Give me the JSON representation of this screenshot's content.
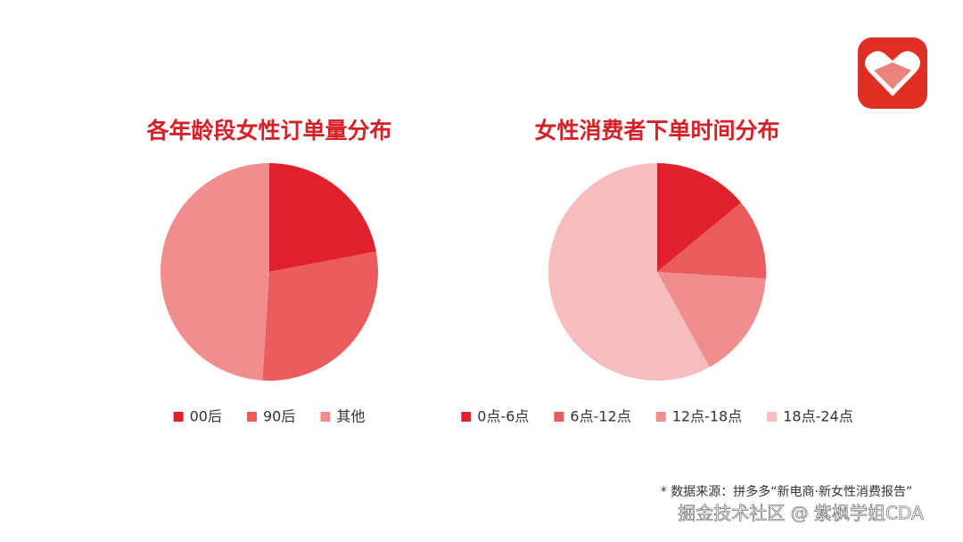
{
  "chart_data": [
    {
      "type": "pie",
      "title": "各年龄段女性订单量分布",
      "categories": [
        "00后",
        "90后",
        "其他"
      ],
      "values": [
        22,
        29,
        49
      ],
      "colors": [
        "#e0202a",
        "#ea5b5e",
        "#f08e8f"
      ]
    },
    {
      "type": "pie",
      "title": "女性消费者下单时间分布",
      "categories": [
        "0点-6点",
        "6点-12点",
        "12点-18点",
        "18点-24点"
      ],
      "values": [
        14,
        12,
        16,
        58
      ],
      "colors": [
        "#e0202a",
        "#ea5b5e",
        "#f08e8f",
        "#f7bcbe"
      ]
    }
  ],
  "footnote": "* 数据来源：拼多多“新电商·新女性消费报告”",
  "watermark": "掘金技术社区 @ 紫枫学姐CDA"
}
